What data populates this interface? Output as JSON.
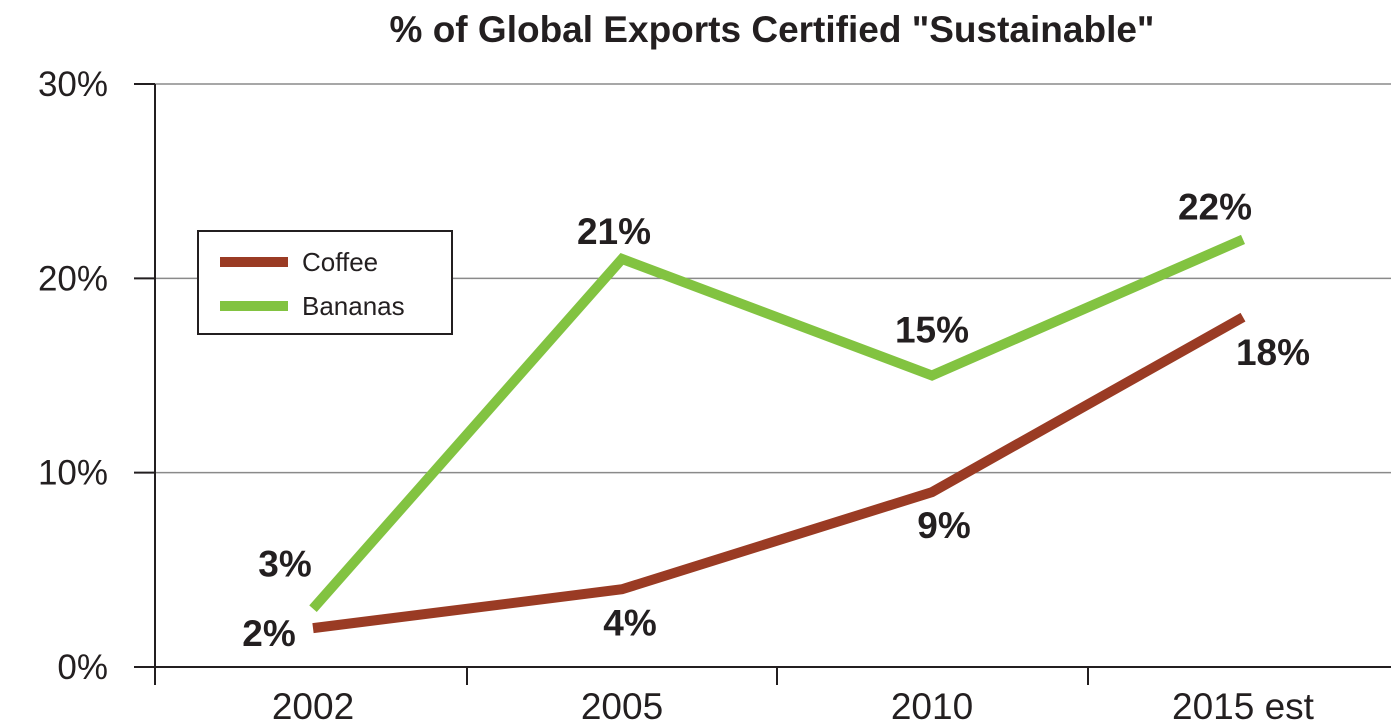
{
  "chart_data": {
    "type": "line",
    "title": "% of Global Exports Certified \"Sustainable\"",
    "categories": [
      "2002",
      "2005",
      "2010",
      "2015 est"
    ],
    "series": [
      {
        "name": "Coffee",
        "values": [
          2,
          4,
          9,
          18
        ],
        "labels": [
          "2%",
          "4%",
          "9%",
          "18%"
        ],
        "color": "#9a3b24"
      },
      {
        "name": "Bananas",
        "values": [
          3,
          21,
          15,
          22
        ],
        "labels": [
          "3%",
          "21%",
          "15%",
          "22%"
        ],
        "color": "#82c341"
      }
    ],
    "ylim": [
      0,
      30
    ],
    "yticks": [
      0,
      10,
      20,
      30
    ],
    "ytick_labels": [
      "0%",
      "10%",
      "20%",
      "30%"
    ],
    "grid": true,
    "legend_position": "upper-left",
    "xlabel": "",
    "ylabel": ""
  }
}
